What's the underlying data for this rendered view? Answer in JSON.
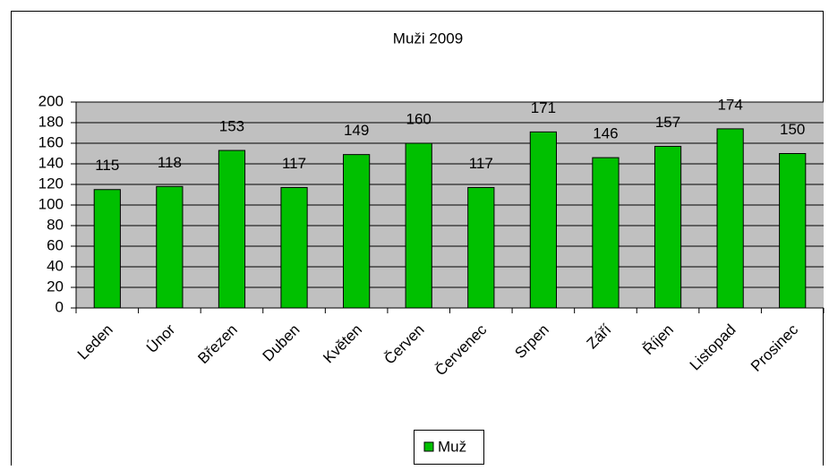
{
  "chart_data": {
    "type": "bar",
    "title": "Muži 2009",
    "categories": [
      "Leden",
      "Únor",
      "Březen",
      "Duben",
      "Květen",
      "Červen",
      "Červenec",
      "Srpen",
      "Září",
      "Říjen",
      "Listopad",
      "Prosinec"
    ],
    "series": [
      {
        "name": "Muž",
        "color": "#00c000",
        "values": [
          115,
          118,
          153,
          117,
          149,
          160,
          117,
          171,
          146,
          157,
          174,
          150
        ]
      }
    ],
    "ylim": [
      0,
      200
    ],
    "yticks": [
      0,
      20,
      40,
      60,
      80,
      100,
      120,
      140,
      160,
      180,
      200
    ],
    "grid": true,
    "legend": "bottom"
  }
}
